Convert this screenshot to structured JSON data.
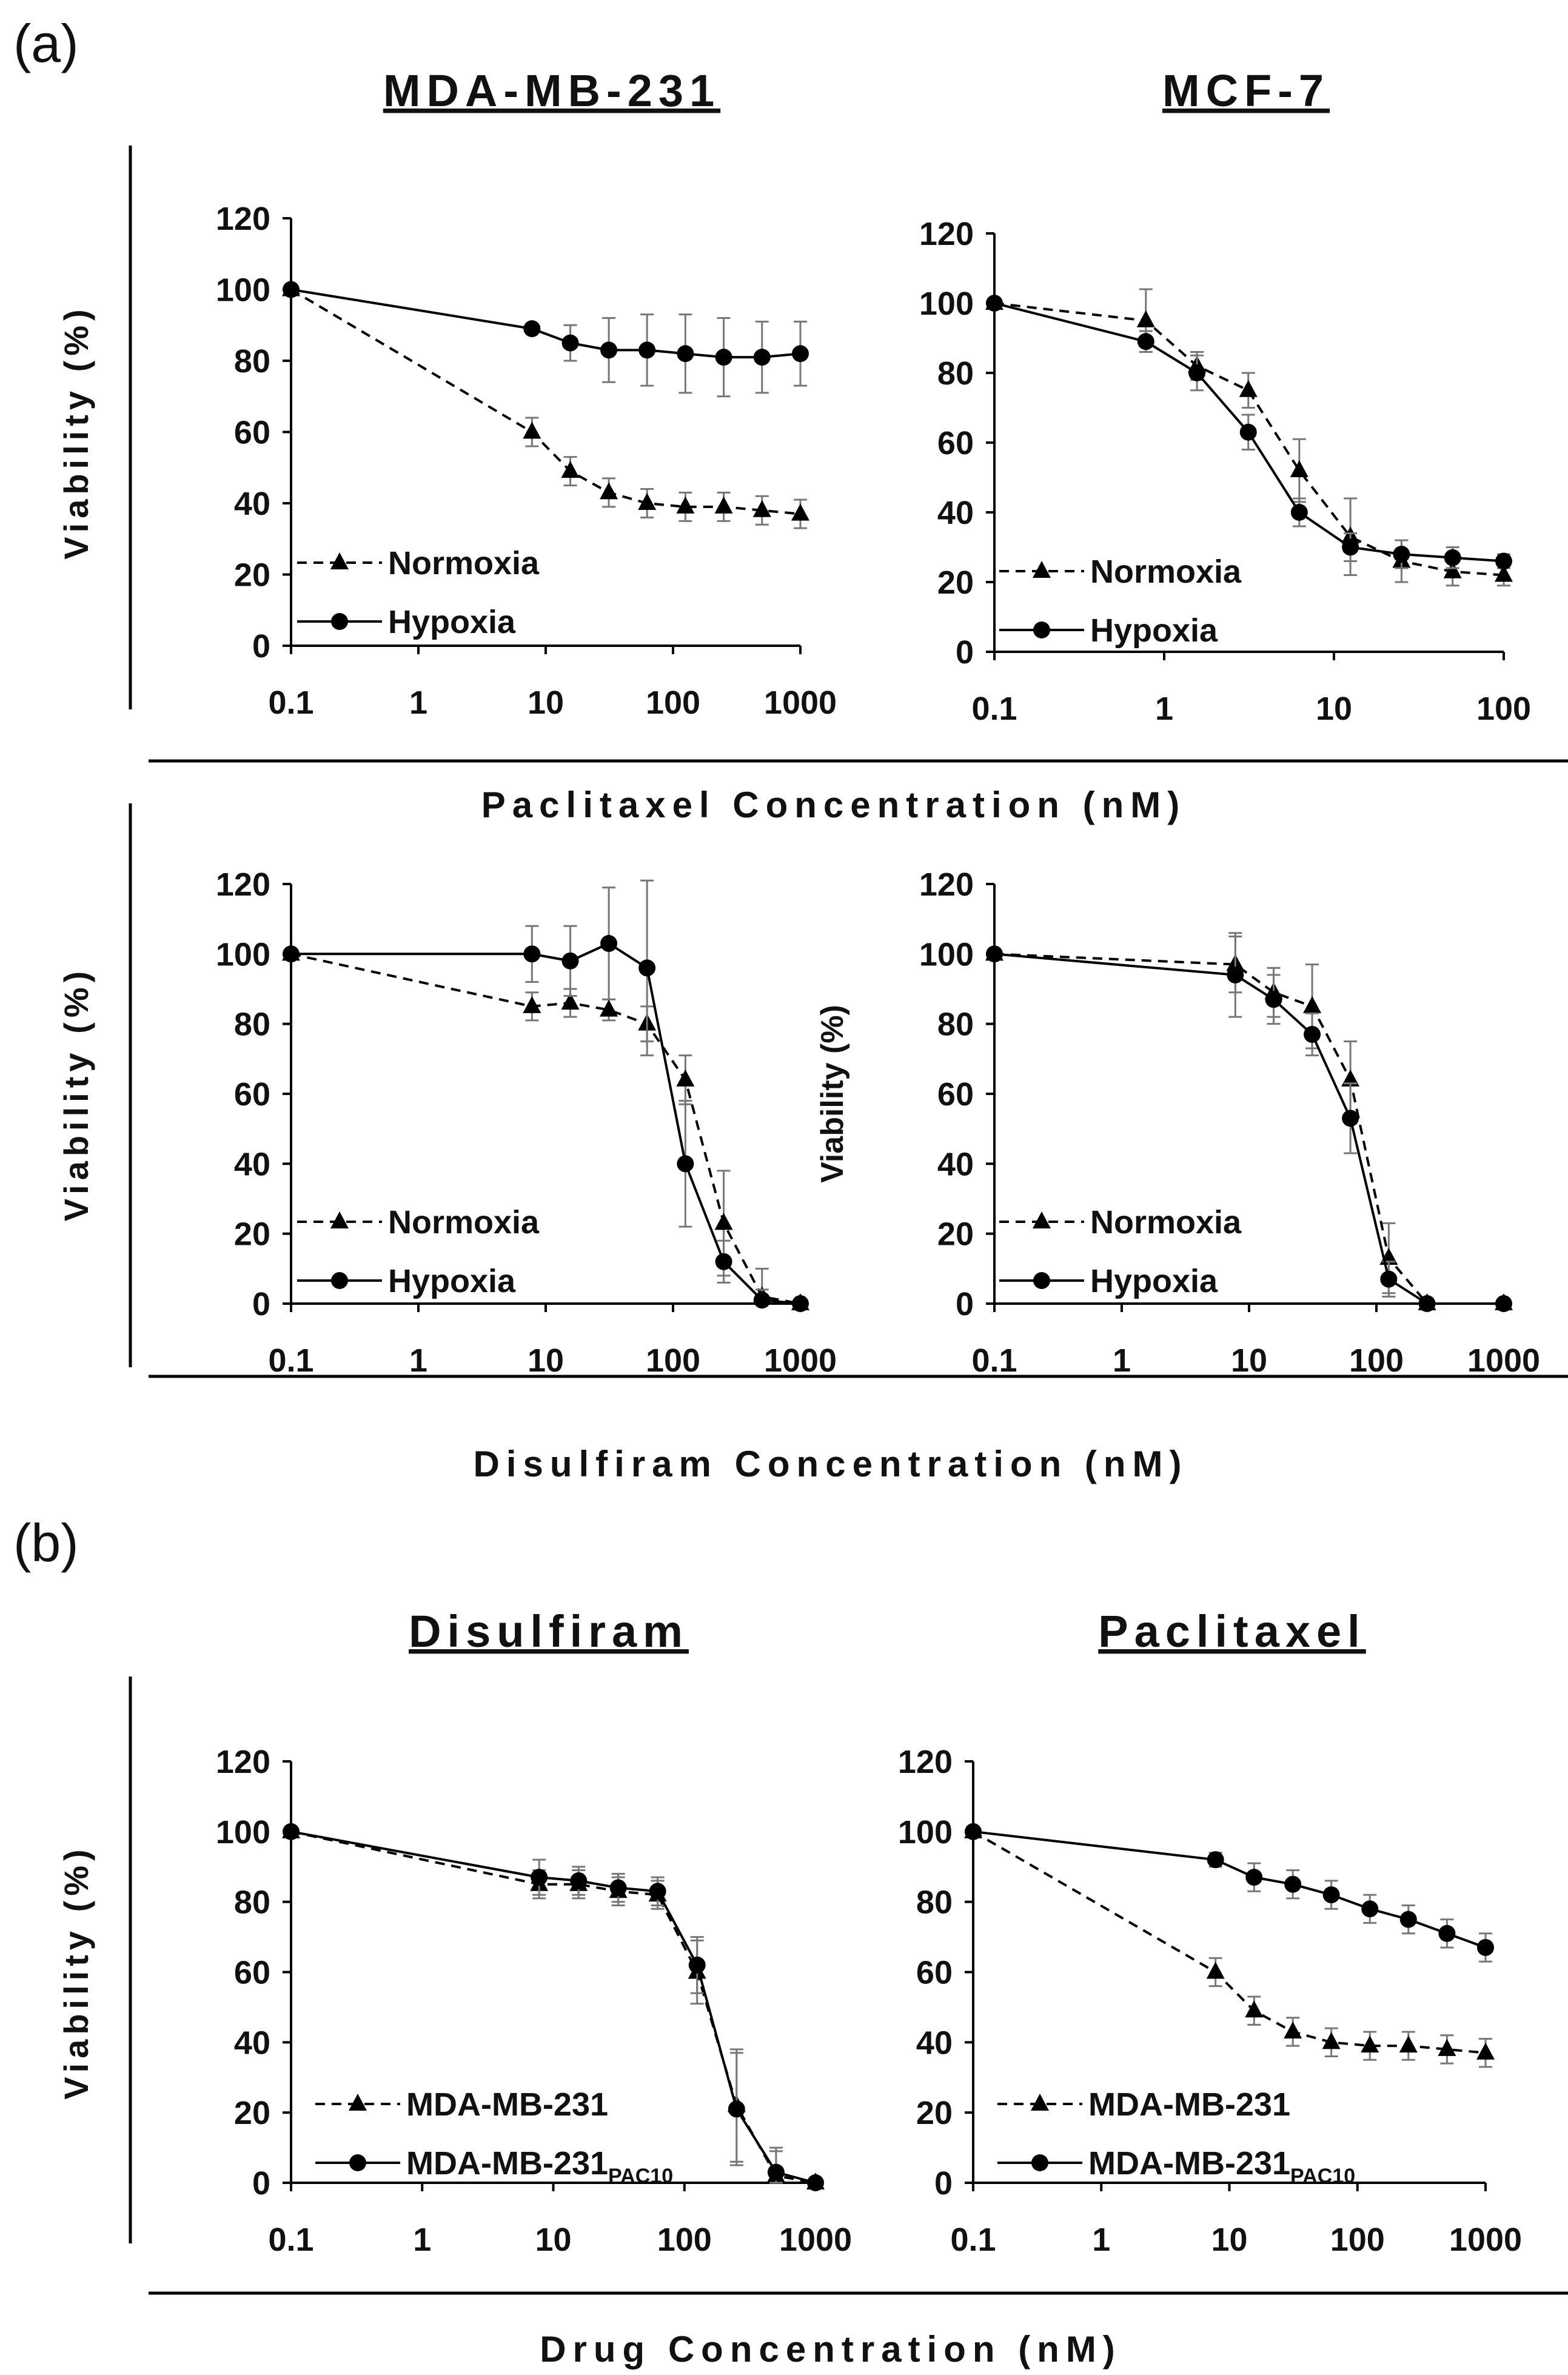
{
  "panel_labels": [
    "(a)",
    "(b)"
  ],
  "xlabels": {
    "row1": "Paclitaxel Concentration (nM)",
    "row2": "Disulfiram Concentration (nM)",
    "row3": "Drug Concentration (nM)"
  },
  "column_titles": {
    "a_left": "MDA-MB-231",
    "a_right": "MCF-7",
    "b_left": "Disulfiram",
    "b_right": "Paclitaxel"
  },
  "chart_data": [
    {
      "id": "a1",
      "type": "line",
      "title": "MDA-MB-231",
      "xscale": "log",
      "xlabel": "Paclitaxel Concentration (nM)",
      "ylabel": "Viability (%)",
      "xlim": [
        0.1,
        1000
      ],
      "ylim": [
        0,
        120
      ],
      "grid": false,
      "legend_position": "bottom-left",
      "xticks": [
        "0.1",
        "1",
        "10",
        "100",
        "1000"
      ],
      "yticks": [
        "0",
        "20",
        "40",
        "60",
        "80",
        "100",
        "120"
      ],
      "series": [
        {
          "name": "Normoxia",
          "marker": "triangle",
          "line": "dashed",
          "x": [
            0.1,
            7.8,
            15.6,
            31.3,
            62.5,
            125,
            250,
            500,
            1000
          ],
          "y": [
            100,
            60,
            49,
            43,
            40,
            39,
            39,
            38,
            37
          ],
          "err": [
            0,
            4,
            4,
            4,
            4,
            4,
            4,
            4,
            4
          ]
        },
        {
          "name": "Hypoxia",
          "marker": "circle",
          "line": "solid",
          "x": [
            0.1,
            7.8,
            15.6,
            31.3,
            62.5,
            125,
            250,
            500,
            1000
          ],
          "y": [
            100,
            89,
            85,
            83,
            83,
            82,
            81,
            81,
            82
          ],
          "err": [
            0,
            1,
            5,
            9,
            10,
            11,
            11,
            10,
            9
          ]
        }
      ]
    },
    {
      "id": "a2",
      "type": "line",
      "title": "MCF-7",
      "xscale": "log",
      "xlabel": "Paclitaxel Concentration (nM)",
      "ylabel": "Viability (%)",
      "xlim": [
        0.1,
        100
      ],
      "ylim": [
        0,
        120
      ],
      "grid": false,
      "legend_position": "bottom-left",
      "xticks": [
        "0.1",
        "1",
        "10",
        "100"
      ],
      "yticks": [
        "0",
        "20",
        "40",
        "60",
        "80",
        "100",
        "120"
      ],
      "series": [
        {
          "name": "Normoxia",
          "marker": "triangle",
          "line": "dashed",
          "x": [
            0.1,
            0.78,
            1.56,
            3.13,
            6.25,
            12.5,
            25,
            50,
            100
          ],
          "y": [
            100,
            95,
            82,
            75,
            52,
            33,
            26,
            23,
            22
          ],
          "err": [
            0,
            9,
            4,
            5,
            9,
            11,
            6,
            4,
            3
          ]
        },
        {
          "name": "Hypoxia",
          "marker": "circle",
          "line": "solid",
          "x": [
            0.1,
            0.78,
            1.56,
            3.13,
            6.25,
            12.5,
            25,
            50,
            100
          ],
          "y": [
            100,
            89,
            80,
            63,
            40,
            30,
            28,
            27,
            26
          ],
          "err": [
            0,
            3,
            5,
            5,
            4,
            4,
            4,
            3,
            2
          ]
        }
      ]
    },
    {
      "id": "a3",
      "type": "line",
      "xscale": "log",
      "xlabel": "Disulfiram Concentration (nM)",
      "ylabel": "Viability (%)",
      "xlim": [
        0.1,
        1000
      ],
      "ylim": [
        0,
        120
      ],
      "grid": false,
      "legend_position": "bottom-left",
      "xticks": [
        "0.1",
        "1",
        "10",
        "100",
        "1000"
      ],
      "yticks": [
        "0",
        "20",
        "40",
        "60",
        "80",
        "100",
        "120"
      ],
      "series": [
        {
          "name": "Normoxia",
          "marker": "triangle",
          "line": "dashed",
          "x": [
            0.1,
            7.8,
            15.6,
            31.3,
            62.5,
            125,
            250,
            500,
            1000
          ],
          "y": [
            100,
            85,
            86,
            84,
            80,
            64,
            23,
            2,
            0
          ],
          "err": [
            0,
            4,
            4,
            3,
            5,
            7,
            15,
            8,
            1
          ]
        },
        {
          "name": "Hypoxia",
          "marker": "circle",
          "line": "solid",
          "x": [
            0.1,
            7.8,
            15.6,
            31.3,
            62.5,
            125,
            250,
            500,
            1000
          ],
          "y": [
            100,
            100,
            98,
            103,
            96,
            40,
            12,
            1,
            0
          ],
          "err": [
            0,
            8,
            10,
            16,
            25,
            18,
            6,
            3,
            1
          ]
        }
      ]
    },
    {
      "id": "a4",
      "type": "line",
      "xscale": "log",
      "xlabel": "Disulfiram Concentration (nM)",
      "ylabel": "Viability (%)",
      "xlim": [
        0.1,
        1000
      ],
      "ylim": [
        0,
        120
      ],
      "grid": false,
      "legend_position": "bottom-left",
      "xticks": [
        "0.1",
        "1",
        "10",
        "100",
        "1000"
      ],
      "yticks": [
        "0",
        "20",
        "40",
        "60",
        "80",
        "100",
        "120"
      ],
      "series": [
        {
          "name": "Normoxia",
          "marker": "triangle",
          "line": "dashed",
          "x": [
            0.1,
            7.8,
            15.6,
            31.3,
            62.5,
            125,
            250,
            1000
          ],
          "y": [
            100,
            97,
            89,
            85,
            64,
            13,
            0,
            0
          ],
          "err": [
            0,
            8,
            7,
            12,
            11,
            10,
            1,
            0
          ]
        },
        {
          "name": "Hypoxia",
          "marker": "circle",
          "line": "solid",
          "x": [
            0.1,
            7.8,
            15.6,
            31.3,
            62.5,
            125,
            250,
            1000
          ],
          "y": [
            100,
            94,
            87,
            77,
            53,
            7,
            0,
            0
          ],
          "err": [
            0,
            12,
            7,
            6,
            10,
            5,
            1,
            0
          ]
        }
      ]
    },
    {
      "id": "b1",
      "type": "line",
      "title": "Disulfiram",
      "xscale": "log",
      "xlabel": "Drug Concentration (nM)",
      "ylabel": "Viability (%)",
      "xlim": [
        0.1,
        1000
      ],
      "ylim": [
        0,
        120
      ],
      "grid": false,
      "legend_position": "bottom-left",
      "xticks": [
        "0.1",
        "1",
        "10",
        "100",
        "1000"
      ],
      "yticks": [
        "0",
        "20",
        "40",
        "60",
        "80",
        "100",
        "120"
      ],
      "series": [
        {
          "name": "MDA-MB-231",
          "marker": "triangle",
          "line": "dashed",
          "x": [
            0.1,
            7.8,
            15.6,
            31.3,
            62.5,
            125,
            250,
            500,
            1000
          ],
          "y": [
            100,
            85,
            85,
            83,
            82,
            60,
            22,
            2,
            0
          ],
          "err": [
            0,
            4,
            4,
            4,
            4,
            9,
            16,
            8,
            1
          ]
        },
        {
          "name": "MDA-MB-231",
          "name_sub": "PAC10",
          "marker": "circle",
          "line": "solid",
          "x": [
            0.1,
            7.8,
            15.6,
            31.3,
            62.5,
            125,
            250,
            500,
            1000
          ],
          "y": [
            100,
            87,
            86,
            84,
            83,
            62,
            21,
            3,
            0
          ],
          "err": [
            0,
            5,
            4,
            4,
            4,
            8,
            16,
            6,
            1
          ]
        }
      ]
    },
    {
      "id": "b2",
      "type": "line",
      "title": "Paclitaxel",
      "xscale": "log",
      "xlabel": "Drug Concentration (nM)",
      "ylabel": "Viability (%)",
      "xlim": [
        0.1,
        1000
      ],
      "ylim": [
        0,
        120
      ],
      "grid": false,
      "legend_position": "bottom-left",
      "xticks": [
        "0.1",
        "1",
        "10",
        "100",
        "1000"
      ],
      "yticks": [
        "0",
        "20",
        "40",
        "60",
        "80",
        "100",
        "120"
      ],
      "series": [
        {
          "name": "MDA-MB-231",
          "marker": "triangle",
          "line": "dashed",
          "x": [
            0.1,
            7.8,
            15.6,
            31.3,
            62.5,
            125,
            250,
            500,
            1000
          ],
          "y": [
            100,
            60,
            49,
            43,
            40,
            39,
            39,
            38,
            37
          ],
          "err": [
            0,
            4,
            4,
            4,
            4,
            4,
            4,
            4,
            4
          ]
        },
        {
          "name": "MDA-MB-231",
          "name_sub": "PAC10",
          "marker": "circle",
          "line": "solid",
          "x": [
            0.1,
            7.8,
            15.6,
            31.3,
            62.5,
            125,
            250,
            500,
            1000
          ],
          "y": [
            100,
            92,
            87,
            85,
            82,
            78,
            75,
            71,
            67
          ],
          "err": [
            0,
            2,
            4,
            4,
            4,
            4,
            4,
            4,
            4
          ]
        }
      ]
    }
  ]
}
